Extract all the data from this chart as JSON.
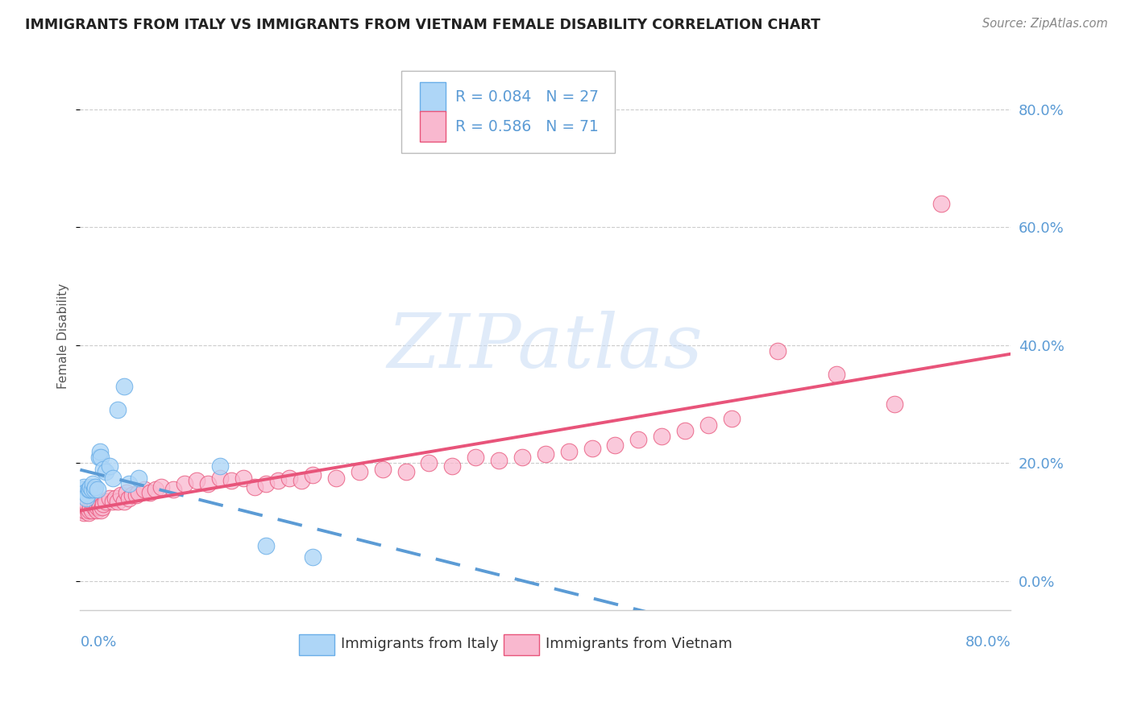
{
  "title": "IMMIGRANTS FROM ITALY VS IMMIGRANTS FROM VIETNAM FEMALE DISABILITY CORRELATION CHART",
  "source": "Source: ZipAtlas.com",
  "ylabel": "Female Disability",
  "ytick_values": [
    0.0,
    0.2,
    0.4,
    0.6,
    0.8
  ],
  "ytick_labels": [
    "0.0%",
    "20.0%",
    "40.0%",
    "60.0%",
    "80.0%"
  ],
  "xlim": [
    0.0,
    0.8
  ],
  "ylim": [
    -0.05,
    0.88
  ],
  "legend_italy_R": "R = 0.084",
  "legend_italy_N": "N = 27",
  "legend_vietnam_R": "R = 0.586",
  "legend_vietnam_N": "N = 71",
  "color_italy_fill": "#AED6F7",
  "color_italy_edge": "#6AAEE8",
  "color_vietnam_fill": "#F9B8CF",
  "color_vietnam_edge": "#E8547A",
  "color_italy_line": "#5B9BD5",
  "color_vietnam_line": "#E8547A",
  "watermark_text": "ZIPatlas",
  "italy_scatter_x": [
    0.002,
    0.003,
    0.004,
    0.005,
    0.006,
    0.007,
    0.008,
    0.009,
    0.01,
    0.011,
    0.012,
    0.013,
    0.015,
    0.016,
    0.017,
    0.018,
    0.02,
    0.022,
    0.025,
    0.028,
    0.032,
    0.038,
    0.042,
    0.05,
    0.12,
    0.16,
    0.2
  ],
  "italy_scatter_y": [
    0.155,
    0.16,
    0.15,
    0.14,
    0.145,
    0.155,
    0.155,
    0.16,
    0.155,
    0.165,
    0.155,
    0.16,
    0.155,
    0.21,
    0.22,
    0.21,
    0.19,
    0.185,
    0.195,
    0.175,
    0.29,
    0.33,
    0.165,
    0.175,
    0.195,
    0.06,
    0.04
  ],
  "vietnam_scatter_x": [
    0.001,
    0.002,
    0.003,
    0.004,
    0.005,
    0.006,
    0.007,
    0.008,
    0.009,
    0.01,
    0.011,
    0.012,
    0.013,
    0.014,
    0.015,
    0.016,
    0.017,
    0.018,
    0.019,
    0.02,
    0.022,
    0.025,
    0.028,
    0.03,
    0.032,
    0.035,
    0.038,
    0.04,
    0.042,
    0.045,
    0.048,
    0.05,
    0.055,
    0.06,
    0.065,
    0.07,
    0.08,
    0.09,
    0.1,
    0.11,
    0.12,
    0.13,
    0.14,
    0.15,
    0.16,
    0.17,
    0.18,
    0.19,
    0.2,
    0.22,
    0.24,
    0.26,
    0.28,
    0.3,
    0.32,
    0.34,
    0.36,
    0.38,
    0.4,
    0.42,
    0.44,
    0.46,
    0.48,
    0.5,
    0.52,
    0.54,
    0.56,
    0.6,
    0.65,
    0.7,
    0.74
  ],
  "vietnam_scatter_y": [
    0.12,
    0.13,
    0.115,
    0.12,
    0.125,
    0.13,
    0.115,
    0.12,
    0.125,
    0.12,
    0.13,
    0.125,
    0.13,
    0.12,
    0.125,
    0.13,
    0.125,
    0.12,
    0.125,
    0.13,
    0.135,
    0.14,
    0.135,
    0.14,
    0.135,
    0.145,
    0.135,
    0.15,
    0.14,
    0.145,
    0.145,
    0.15,
    0.155,
    0.15,
    0.155,
    0.16,
    0.155,
    0.165,
    0.17,
    0.165,
    0.175,
    0.17,
    0.175,
    0.16,
    0.165,
    0.17,
    0.175,
    0.17,
    0.18,
    0.175,
    0.185,
    0.19,
    0.185,
    0.2,
    0.195,
    0.21,
    0.205,
    0.21,
    0.215,
    0.22,
    0.225,
    0.23,
    0.24,
    0.245,
    0.255,
    0.265,
    0.275,
    0.39,
    0.35,
    0.3,
    0.64
  ]
}
